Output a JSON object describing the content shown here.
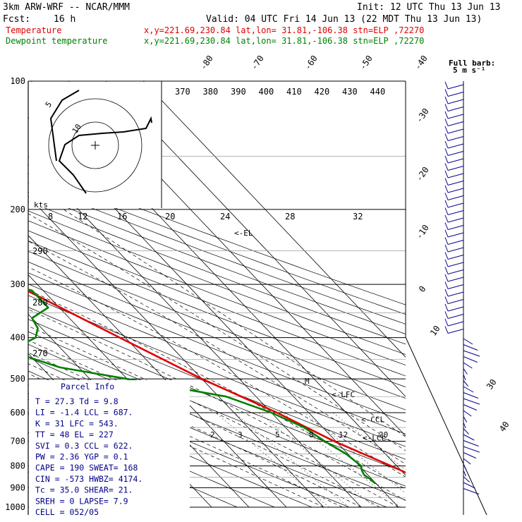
{
  "header": {
    "model": "3km ARW-WRF -- NCAR/MMM",
    "init": "Init: 12 UTC Thu 13 Jun 13",
    "fcst_label": "Fcst:",
    "fcst_value": "16 h",
    "valid": "Valid: 04 UTC Fri 14 Jun 13 (22 MDT Thu 13 Jun 13)",
    "temp_label": "Temperature",
    "temp_loc": "x,y=221.69,230.84   lat,lon= 31.81,-106.38  stn=ELP ,72270",
    "dew_label": "Dewpoint temperature",
    "dew_loc": "x,y=221.69,230.84   lat,lon= 31.81,-106.38  stn=ELP ,72270"
  },
  "colors": {
    "temperature": "#e00000",
    "dewpoint": "#008000",
    "annotation": "#00008b"
  },
  "chart_data": {
    "type": "line",
    "pressure_levels": [
      "100",
      "200",
      "300",
      "400",
      "500",
      "600",
      "700",
      "800",
      "900",
      "1000"
    ],
    "isotherm_labels": [
      "-80",
      "-70",
      "-60",
      "-50",
      "-40",
      "-30",
      "-20",
      "-10",
      "0",
      "10",
      "20",
      "30",
      "40"
    ],
    "theta_labels": [
      "370",
      "380",
      "390",
      "400",
      "410",
      "420",
      "430",
      "440"
    ],
    "theta_e_labels": [
      "290",
      "280",
      "270"
    ],
    "mixing_ratio_labels": [
      "2",
      "3",
      "5",
      "8",
      "12",
      "20"
    ],
    "hodograph": {
      "units": "kts",
      "speed_labels": [
        "8",
        "12",
        "16",
        "20",
        "24",
        "28",
        "32"
      ],
      "ring_labels": [
        "5",
        "10"
      ]
    },
    "wind_key": {
      "title": "Full barb:",
      "value": "5 m s⁻¹"
    },
    "temperature": {
      "name": "Temperature",
      "p": [
        880,
        860,
        840,
        800,
        700,
        600,
        500,
        400,
        300,
        250,
        200,
        170,
        150,
        130,
        100
      ],
      "t": [
        27.3,
        24.0,
        21.5,
        18.5,
        9.5,
        1.5,
        -10.0,
        -21.5,
        -36.0,
        -45.0,
        -56.0,
        -63.0,
        -63.5,
        -63.0,
        -58.0
      ]
    },
    "dewpoint": {
      "name": "Dewpoint temperature",
      "p": [
        880,
        860,
        840,
        820,
        800,
        750,
        700,
        650,
        600,
        550,
        500,
        470,
        440,
        420,
        400,
        380,
        360,
        340,
        310,
        300,
        280,
        250,
        220,
        200,
        170,
        150,
        130,
        100
      ],
      "td": [
        9.8,
        9.6,
        9.0,
        9.5,
        10.5,
        9.5,
        7.0,
        5.0,
        0.0,
        -8.0,
        -30.0,
        -45.0,
        -52.0,
        -51.0,
        -44.0,
        -41.0,
        -40.0,
        -33.0,
        -33.0,
        -38.0,
        -57.0,
        -52.0,
        -56.0,
        -56.0,
        -68.0,
        -72.0,
        -70.0,
        -60.0
      ]
    },
    "annotations": [
      {
        "label": "<-EL",
        "p": 227
      },
      {
        "label": "M",
        "p": 505
      },
      {
        "label": "<-LFC",
        "p": 543
      },
      {
        "label": "<-CCL",
        "p": 622
      },
      {
        "label": "<-LCL",
        "p": 687
      }
    ]
  },
  "parcel_info": {
    "title": "Parcel Info",
    "rows": [
      "T  =   27.3  Td  =  9.8",
      "LI =   -1.4  LCL = 687.",
      "K  =     31  LFC = 543.",
      "TT =     48  EL  =  227",
      "SVI =   0.3  CCL = 622.",
      "PW =   2.36  YGP =  0.1",
      "CAPE =  190  SWEAT= 168",
      "CIN =  -573  HWBZ= 4174.",
      "Tc =   35.0  SHEAR= 21.",
      "SREH =    0  LAPSE= 7.9",
      "CELL = 052/05"
    ]
  }
}
